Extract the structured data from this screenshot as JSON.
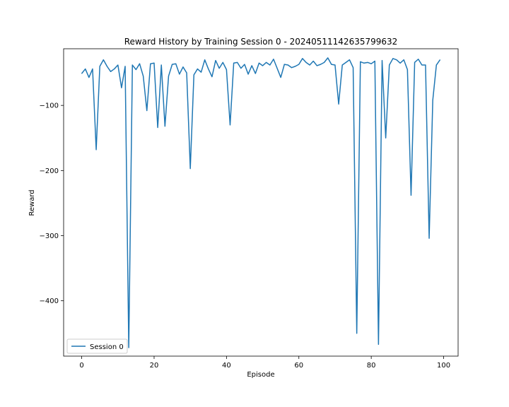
{
  "chart_data": {
    "type": "line",
    "title": "Reward History by Training Session 0 - 20240511142635799632",
    "xlabel": "Episode",
    "ylabel": "Reward",
    "xlim": [
      -5,
      104
    ],
    "ylim": [
      -485,
      -13
    ],
    "x_ticks": [
      0,
      20,
      40,
      60,
      80,
      100
    ],
    "y_ticks": [
      -400,
      -300,
      -200,
      -100
    ],
    "y_tick_labels": [
      "−400",
      "−300",
      "−200",
      "−100"
    ],
    "grid": false,
    "legend": "lower-left",
    "series": [
      {
        "name": "Session 0",
        "color": "#1f77b4",
        "x": [
          0,
          1,
          2,
          3,
          4,
          5,
          6,
          7,
          8,
          9,
          10,
          11,
          12,
          13,
          14,
          15,
          16,
          17,
          18,
          19,
          20,
          21,
          22,
          23,
          24,
          25,
          26,
          27,
          28,
          29,
          30,
          31,
          32,
          33,
          34,
          35,
          36,
          37,
          38,
          39,
          40,
          41,
          42,
          43,
          44,
          45,
          46,
          47,
          48,
          49,
          50,
          51,
          52,
          53,
          54,
          55,
          56,
          57,
          58,
          59,
          60,
          61,
          62,
          63,
          64,
          65,
          66,
          67,
          68,
          69,
          70,
          71,
          72,
          73,
          74,
          75,
          76,
          77,
          78,
          79,
          80,
          81,
          82,
          83,
          84,
          85,
          86,
          87,
          88,
          89,
          90,
          91,
          92,
          93,
          94,
          95,
          96,
          97,
          98,
          99
        ],
        "values": [
          -51,
          -44,
          -57,
          -44,
          -168,
          -40,
          -30,
          -40,
          -48,
          -44,
          -38,
          -73,
          -40,
          -472,
          -38,
          -45,
          -36,
          -55,
          -108,
          -36,
          -35,
          -134,
          -38,
          -132,
          -55,
          -37,
          -36,
          -52,
          -41,
          -50,
          -197,
          -53,
          -44,
          -49,
          -30,
          -44,
          -56,
          -31,
          -43,
          -34,
          -45,
          -130,
          -35,
          -34,
          -43,
          -37,
          -52,
          -39,
          -51,
          -35,
          -39,
          -34,
          -38,
          -29,
          -43,
          -57,
          -37,
          -38,
          -42,
          -40,
          -37,
          -28,
          -34,
          -38,
          -32,
          -39,
          -37,
          -34,
          -27,
          -37,
          -38,
          -98,
          -38,
          -34,
          -30,
          -42,
          -450,
          -33,
          -35,
          -34,
          -36,
          -32,
          -467,
          -31,
          -150,
          -38,
          -28,
          -30,
          -35,
          -30,
          -45,
          -238,
          -34,
          -29,
          -38,
          -38,
          -304,
          -92,
          -38,
          -30
        ]
      }
    ]
  }
}
